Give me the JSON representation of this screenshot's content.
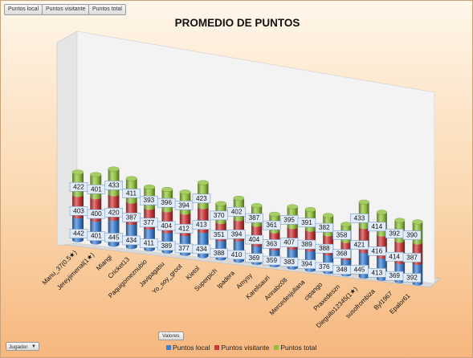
{
  "field_buttons": [
    "Puntos local",
    "Puntos visitante",
    "Puntos total"
  ],
  "values_button": "Valores",
  "filter_button": "Jugador",
  "chart_data": {
    "type": "bar",
    "stacked": true,
    "style": "3d-cylinder",
    "title": "PROMEDIO DE PUNTOS",
    "categories": [
      "Manu_37(0.5★)",
      "Jereyjimenal(1★)",
      "Miangi",
      "Cricket13",
      "Paquigomeznubio",
      "Javipagasu",
      "Yo_soy_groot",
      "Kietol",
      "Superpich",
      "Ipadera",
      "Amysy",
      "Karelisauri",
      "Annabc08",
      "Mercedesjuliana",
      "cipango",
      "Praxedeszn",
      "Dieguito12345(1★)",
      "susofrombiza",
      "Byl1967",
      "Epalor61"
    ],
    "series": [
      {
        "name": "Puntos local",
        "color": "#3f7fd0",
        "values": [
          442,
          401,
          445,
          434,
          411,
          389,
          377,
          434,
          388,
          410,
          369,
          359,
          383,
          394,
          376,
          348,
          445,
          413,
          369,
          392
        ]
      },
      {
        "name": "Puntos visitante",
        "color": "#c9383a",
        "values": [
          403,
          400,
          420,
          387,
          377,
          404,
          412,
          413,
          351,
          394,
          404,
          363,
          407,
          389,
          388,
          368,
          421,
          416,
          414,
          387
        ]
      },
      {
        "name": "Puntos total",
        "color": "#91c03e",
        "values": [
          422,
          401,
          433,
          411,
          393,
          396,
          394,
          423,
          370,
          402,
          387,
          361,
          395,
          391,
          382,
          358,
          433,
          414,
          392,
          390
        ]
      }
    ],
    "legend": "bottom",
    "grid": false
  }
}
